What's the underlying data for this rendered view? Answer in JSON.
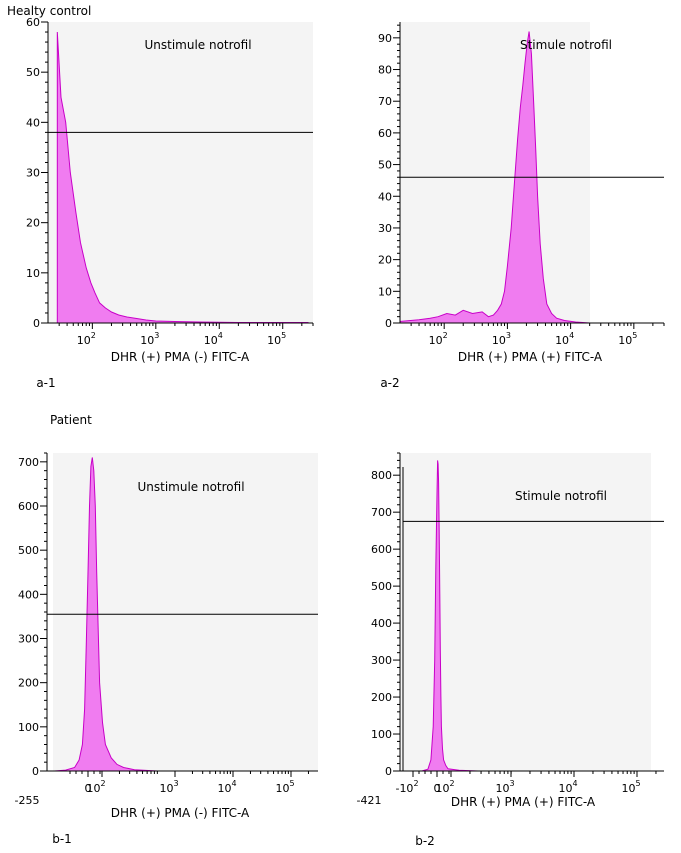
{
  "sections": {
    "healthy": "Healty control",
    "patient": "Patient"
  },
  "chart_data": [
    {
      "type": "area",
      "id": "a-1",
      "panel_label": "a-1",
      "annotation": "Unstimule notrofil",
      "xlabel": "DHR (+) PMA (-) FITC-A",
      "xscale": "log",
      "xlim": [
        20,
        300000
      ],
      "x_ticks": [
        {
          "v": 100,
          "t": "10",
          "e": "2"
        },
        {
          "v": 1000,
          "t": "10",
          "e": "3"
        },
        {
          "v": 10000,
          "t": "10",
          "e": "4"
        },
        {
          "v": 100000,
          "t": "10",
          "e": "5"
        }
      ],
      "ylim": [
        0,
        60
      ],
      "y_ticks": [
        0,
        10,
        20,
        30,
        40,
        50,
        60
      ],
      "gate_y": 38,
      "series": [
        {
          "x": [
            28,
            32,
            38,
            45,
            55,
            65,
            80,
            95,
            110,
            130,
            160,
            200,
            260,
            350,
            500,
            700,
            1000,
            2000,
            5000,
            20000,
            100000,
            250000
          ],
          "y": [
            58,
            45,
            40,
            30,
            22,
            16,
            11,
            8,
            6,
            4,
            3,
            2.2,
            1.6,
            1.2,
            0.9,
            0.6,
            0.4,
            0.3,
            0.2,
            0.1,
            0.1,
            0.1
          ]
        }
      ]
    },
    {
      "type": "area",
      "id": "a-2",
      "panel_label": "a-2",
      "annotation": "Stimule notrofil",
      "xlabel": "DHR (+) PMA (+) FITC-A",
      "xscale": "log",
      "xlim": [
        20,
        300000
      ],
      "x_ticks": [
        {
          "v": 100,
          "t": "10",
          "e": "2"
        },
        {
          "v": 1000,
          "t": "10",
          "e": "3"
        },
        {
          "v": 10000,
          "t": "10",
          "e": "4"
        },
        {
          "v": 100000,
          "t": "10",
          "e": "5"
        }
      ],
      "ylim": [
        0,
        95
      ],
      "y_ticks": [
        0,
        10,
        20,
        30,
        40,
        50,
        60,
        70,
        80,
        90
      ],
      "gate_y": 46,
      "series": [
        {
          "x": [
            20,
            40,
            60,
            80,
            110,
            150,
            200,
            280,
            400,
            500,
            600,
            700,
            800,
            900,
            1000,
            1150,
            1300,
            1450,
            1600,
            1750,
            1900,
            2050,
            2200,
            2400,
            2600,
            2800,
            3000,
            3300,
            3700,
            4200,
            5000,
            6000,
            8000,
            12000,
            20000
          ],
          "y": [
            0.5,
            1,
            1.5,
            2,
            3,
            2.5,
            4,
            3,
            3.5,
            2,
            2.5,
            4,
            6,
            10,
            18,
            30,
            45,
            58,
            68,
            75,
            82,
            88,
            92,
            85,
            70,
            55,
            40,
            25,
            14,
            6,
            3,
            1.5,
            0.8,
            0.3,
            0
          ]
        }
      ]
    },
    {
      "type": "area",
      "id": "b-1",
      "panel_label": "b-1",
      "annotation": "Unstimule notrofil",
      "xlabel": "DHR (+) PMA (-) FITC-A",
      "xscale": "biexponential",
      "xlim": [
        -255,
        262144
      ],
      "x_ticks": [
        {
          "v": 0,
          "t": "0"
        },
        {
          "v": 100,
          "t": "10",
          "e": "2"
        },
        {
          "v": 1000,
          "t": "10",
          "e": "3"
        },
        {
          "v": 10000,
          "t": "10",
          "e": "4"
        },
        {
          "v": 100000,
          "t": "10",
          "e": "5"
        }
      ],
      "x_min_label": "-255",
      "ylim": [
        0,
        720
      ],
      "y_ticks": [
        0,
        100,
        200,
        300,
        400,
        500,
        600,
        700
      ],
      "gate_y": 355,
      "series": [
        {
          "x": [
            -150,
            -100,
            -60,
            -40,
            -25,
            -15,
            -8,
            0,
            5,
            10,
            15,
            20,
            25,
            30,
            35,
            40,
            50,
            60,
            80,
            100,
            130,
            200,
            500
          ],
          "y": [
            0,
            2,
            8,
            25,
            60,
            140,
            280,
            450,
            600,
            690,
            710,
            680,
            600,
            450,
            320,
            200,
            110,
            60,
            30,
            15,
            8,
            3,
            0
          ]
        }
      ]
    },
    {
      "type": "area",
      "id": "b-2",
      "panel_label": "b-2",
      "annotation": "Stimule notrofil",
      "xlabel": "DHR (+) PMA (+) FITC-A",
      "xscale": "biexponential",
      "xlim": [
        -421,
        262144
      ],
      "x_ticks": [
        {
          "v": -100,
          "t": "-10",
          "e": "2"
        },
        {
          "v": 0,
          "t": "0"
        },
        {
          "v": 100,
          "t": "10",
          "e": "2"
        },
        {
          "v": 1000,
          "t": "10",
          "e": "3"
        },
        {
          "v": 10000,
          "t": "10",
          "e": "4"
        },
        {
          "v": 100000,
          "t": "10",
          "e": "5"
        }
      ],
      "x_min_label": "-421",
      "ylim": [
        0,
        860
      ],
      "y_ticks": [
        0,
        100,
        200,
        300,
        400,
        500,
        600,
        700,
        800
      ],
      "gate_y": 675,
      "gate_x": -400,
      "series": [
        {
          "x": [
            -100,
            -60,
            -40,
            -25,
            -15,
            -8,
            0,
            5,
            10,
            15,
            20,
            25,
            30,
            35,
            40,
            50,
            60,
            80,
            100,
            150,
            300
          ],
          "y": [
            0,
            5,
            30,
            120,
            300,
            550,
            750,
            840,
            830,
            780,
            650,
            480,
            330,
            200,
            120,
            60,
            30,
            15,
            6,
            2,
            0
          ]
        }
      ]
    }
  ]
}
